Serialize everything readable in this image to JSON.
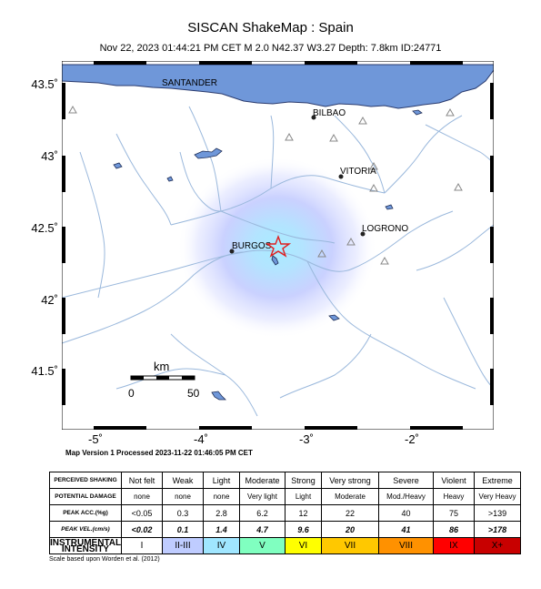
{
  "header": {
    "title": "SISCAN ShakeMap : Spain",
    "subtitle": "Nov 22, 2023 01:44:21 PM CET   M 2.0   N42.37 W3.27   Depth: 7.8km   ID:24771"
  },
  "map": {
    "lat_labels": [
      "43.5˚",
      "43˚",
      "42.5˚",
      "42˚",
      "41.5˚"
    ],
    "lon_labels": [
      "-5˚",
      "-4˚",
      "-3˚",
      "-2˚"
    ],
    "cities": {
      "santander": "SANTANDER",
      "bilbao": "BILBAO",
      "vitoria": "VITORIA",
      "logrono": "LOGRONO",
      "burgos": "BURGOS"
    },
    "scale_bar": {
      "unit": "km",
      "start": "0",
      "end": "50"
    },
    "colors": {
      "sea": "#6f97d9",
      "rivers": "#9ab8dc",
      "epicenter": "#e02020"
    }
  },
  "version_line": "Map Version 1 Processed 2023-11-22 01:46:05 PM CET",
  "legend": {
    "row_labels": [
      "PERCEIVED SHAKING",
      "POTENTIAL DAMAGE",
      "PEAK ACC.(%g)",
      "PEAK VEL.(cm/s)",
      "INSTRUMENTAL INTENSITY"
    ],
    "shaking": [
      "Not felt",
      "Weak",
      "Light",
      "Moderate",
      "Strong",
      "Very strong",
      "Severe",
      "Violent",
      "Extreme"
    ],
    "damage": [
      "none",
      "none",
      "none",
      "Very light",
      "Light",
      "Moderate",
      "Mod./Heavy",
      "Heavy",
      "Very Heavy"
    ],
    "acc": [
      "<0.05",
      "0.3",
      "2.8",
      "6.2",
      "12",
      "22",
      "40",
      "75",
      ">139"
    ],
    "vel": [
      "<0.02",
      "0.1",
      "1.4",
      "4.7",
      "9.6",
      "20",
      "41",
      "86",
      ">178"
    ],
    "intensity": [
      "I",
      "II-III",
      "IV",
      "V",
      "VI",
      "VII",
      "VIII",
      "IX",
      "X+"
    ],
    "intensity_colors": [
      "#ffffff",
      "#bfccff",
      "#a0e6ff",
      "#80ffc0",
      "#ffff00",
      "#ffc800",
      "#ff9100",
      "#ff0000",
      "#c80000"
    ]
  },
  "scale_note": "Scale based upon Worden et al. (2012)"
}
